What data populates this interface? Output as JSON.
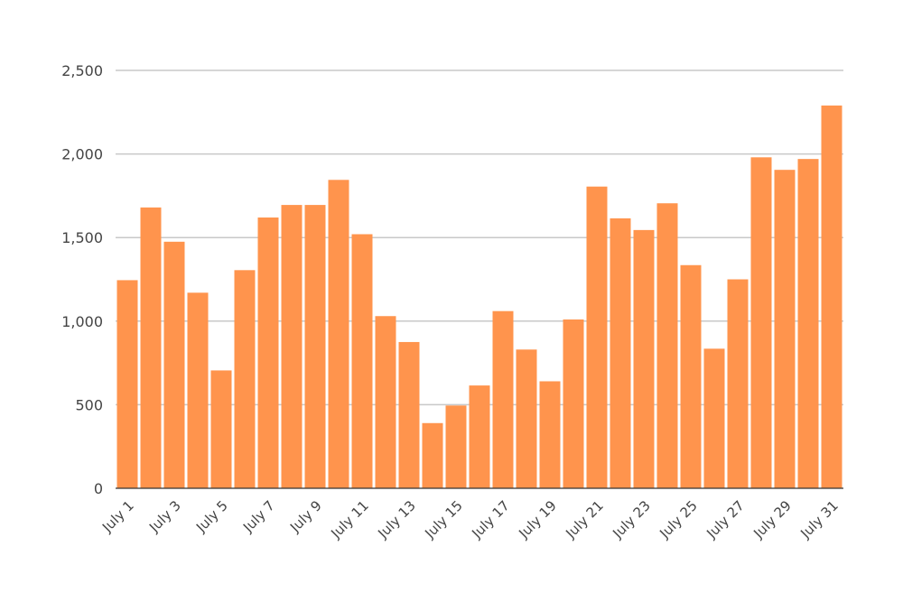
{
  "chart_data": {
    "type": "bar",
    "title": "",
    "xlabel": "",
    "ylabel": "",
    "ylim": [
      0,
      2500
    ],
    "yticks": [
      0,
      500,
      1000,
      1500,
      2000,
      2500
    ],
    "ytick_labels": [
      "0",
      "500",
      "1,000",
      "1,500",
      "2,000",
      "2,500"
    ],
    "grid": true,
    "legend": "none",
    "bar_color": "#ff944d",
    "categories": [
      "July 1",
      "July 2",
      "July 3",
      "July 4",
      "July 5",
      "July 6",
      "July 7",
      "July 8",
      "July 9",
      "July 10",
      "July 11",
      "July 12",
      "July 13",
      "July 14",
      "July 15",
      "July 16",
      "July 17",
      "July 18",
      "July 19",
      "July 20",
      "July 21",
      "July 22",
      "July 23",
      "July 24",
      "July 25",
      "July 26",
      "July 27",
      "July 28",
      "July 29",
      "July 30",
      "July 31"
    ],
    "xtick_labels": [
      "July 1",
      "July 3",
      "July 5",
      "July 7",
      "July 9",
      "July 11",
      "July 13",
      "July 15",
      "July 17",
      "July 19",
      "July 21",
      "July 23",
      "July 25",
      "July 27",
      "July 29",
      "July 31"
    ],
    "values": [
      1245,
      1680,
      1475,
      1170,
      705,
      1305,
      1620,
      1695,
      1695,
      1845,
      1520,
      1030,
      875,
      390,
      495,
      615,
      1060,
      830,
      640,
      1010,
      1805,
      1615,
      1545,
      1705,
      1335,
      835,
      1250,
      1980,
      1905,
      1970,
      2290
    ]
  }
}
